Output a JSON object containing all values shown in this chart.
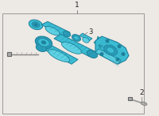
{
  "bg_color": "#ede9e4",
  "border_color": "#999999",
  "pc": "#3bbdd4",
  "pcd": "#2a9cb8",
  "pcl": "#5dd0e2",
  "pcs": "#1e8099",
  "label_1": "1",
  "label_2": "2",
  "label_3": "3",
  "fig_width": 2.0,
  "fig_height": 1.47,
  "dpi": 100
}
